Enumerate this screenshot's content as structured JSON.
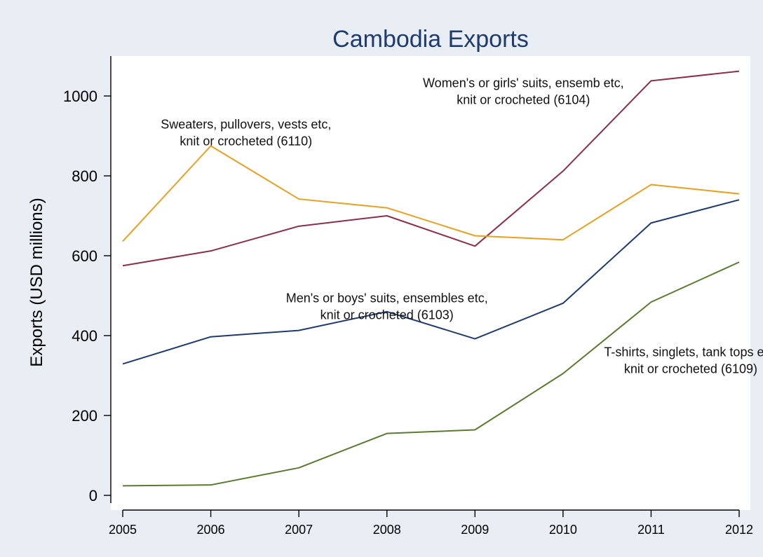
{
  "chart_data": {
    "type": "line",
    "title": "Cambodia Exports",
    "xlabel": "",
    "ylabel": "Exports (USD millions)",
    "x": [
      2005,
      2006,
      2007,
      2008,
      2009,
      2010,
      2011,
      2012
    ],
    "xlim": [
      2005,
      2012
    ],
    "ylim": [
      0,
      1000
    ],
    "yticks": [
      0,
      200,
      400,
      600,
      800,
      1000
    ],
    "grid": false,
    "legend": "none",
    "colors": {
      "background": "#e8eef3",
      "plot_bg": "#ffffff",
      "title": "#1f3b6e",
      "axis": "#000000"
    },
    "series": [
      {
        "values": [
          575,
          612,
          674,
          700,
          624,
          812,
          1038,
          1062
        ],
        "color": "#8b2e4b"
      },
      {
        "values": [
          636,
          875,
          742,
          720,
          650,
          640,
          778,
          755
        ],
        "color": "#e8a020"
      },
      {
        "values": [
          329,
          397,
          413,
          460,
          392,
          481,
          682,
          740
        ],
        "color": "#1f3a6e"
      },
      {
        "values": [
          24,
          26,
          69,
          155,
          164,
          305,
          484,
          584
        ],
        "color": "#5a7a30"
      }
    ],
    "annotations": [
      {
        "lines": [
          "Women's or girls' suits, ensemb etc,",
          "knit or crocheted (6104)"
        ],
        "x": 2009.55,
        "y": 1022
      },
      {
        "lines": [
          "Sweaters, pullovers, vests etc,",
          "knit or crocheted (6110)"
        ],
        "x": 2006.4,
        "y": 918
      },
      {
        "lines": [
          "Men's or boys' suits, ensembles etc,",
          "knit or crocheted (6103)"
        ],
        "x": 2008.0,
        "y": 483
      },
      {
        "lines": [
          "T-shirts, singlets, tank tops etc,",
          "knit or crocheted (6109)"
        ],
        "x": 2011.45,
        "y": 348
      }
    ]
  }
}
